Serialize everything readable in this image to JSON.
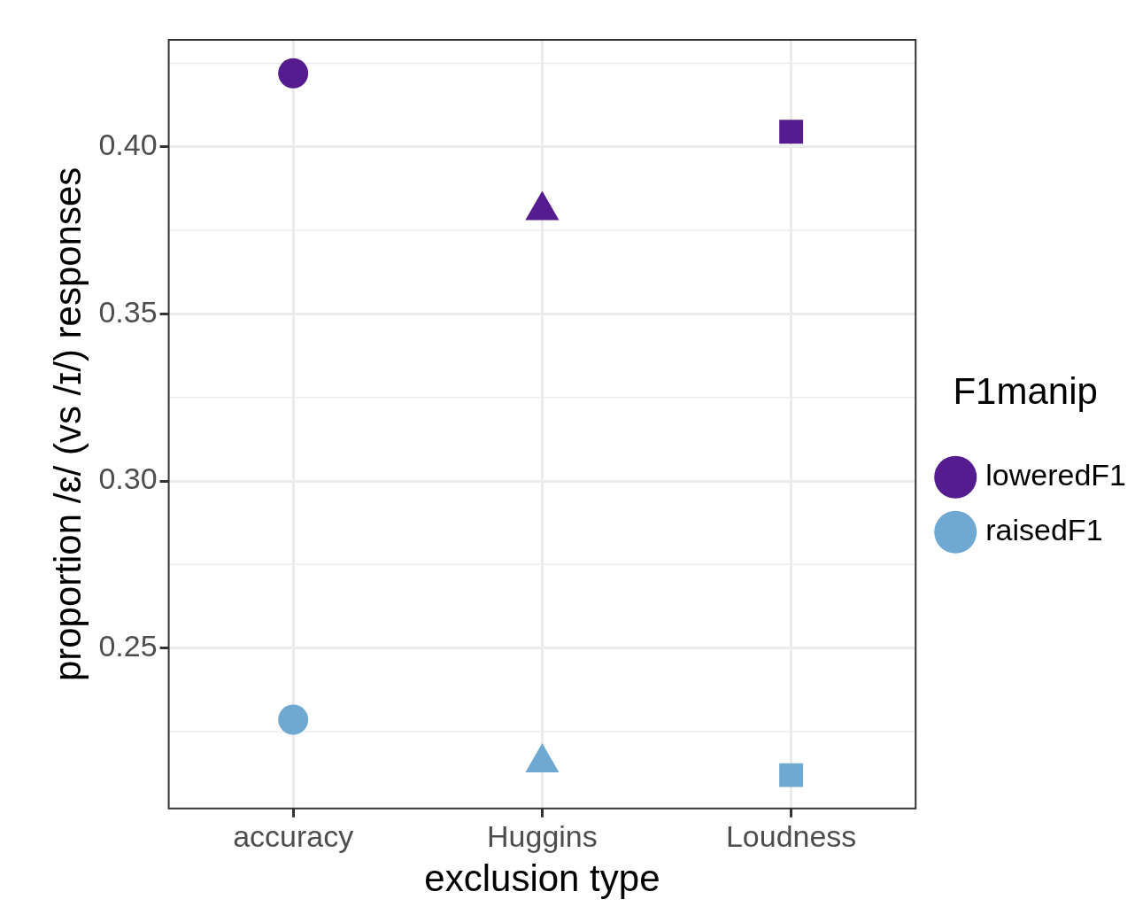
{
  "chart_data": {
    "type": "scatter",
    "xlabel": "exclusion type",
    "ylabel": "proportion /ɛ/ (vs /ɪ/) responses",
    "legend_title": "F1manip",
    "categories": [
      "accuracy",
      "Huggins",
      "Loudness"
    ],
    "series": [
      {
        "name": "loweredF1",
        "color": "#541c8e",
        "values": [
          0.422,
          0.381,
          0.4045
        ]
      },
      {
        "name": "raisedF1",
        "color": "#6fa8d0",
        "values": [
          0.2286,
          0.2157,
          0.212
        ]
      }
    ],
    "marker": [
      "circle",
      "triangle",
      "square"
    ],
    "ylim": [
      0.202,
      0.432
    ],
    "yticks": [
      {
        "value": 0.25,
        "label": "0.25"
      },
      {
        "value": 0.3,
        "label": "0.30"
      },
      {
        "value": 0.35,
        "label": "0.35"
      },
      {
        "value": 0.4,
        "label": "0.40"
      }
    ],
    "grid": true,
    "legend": "right"
  }
}
